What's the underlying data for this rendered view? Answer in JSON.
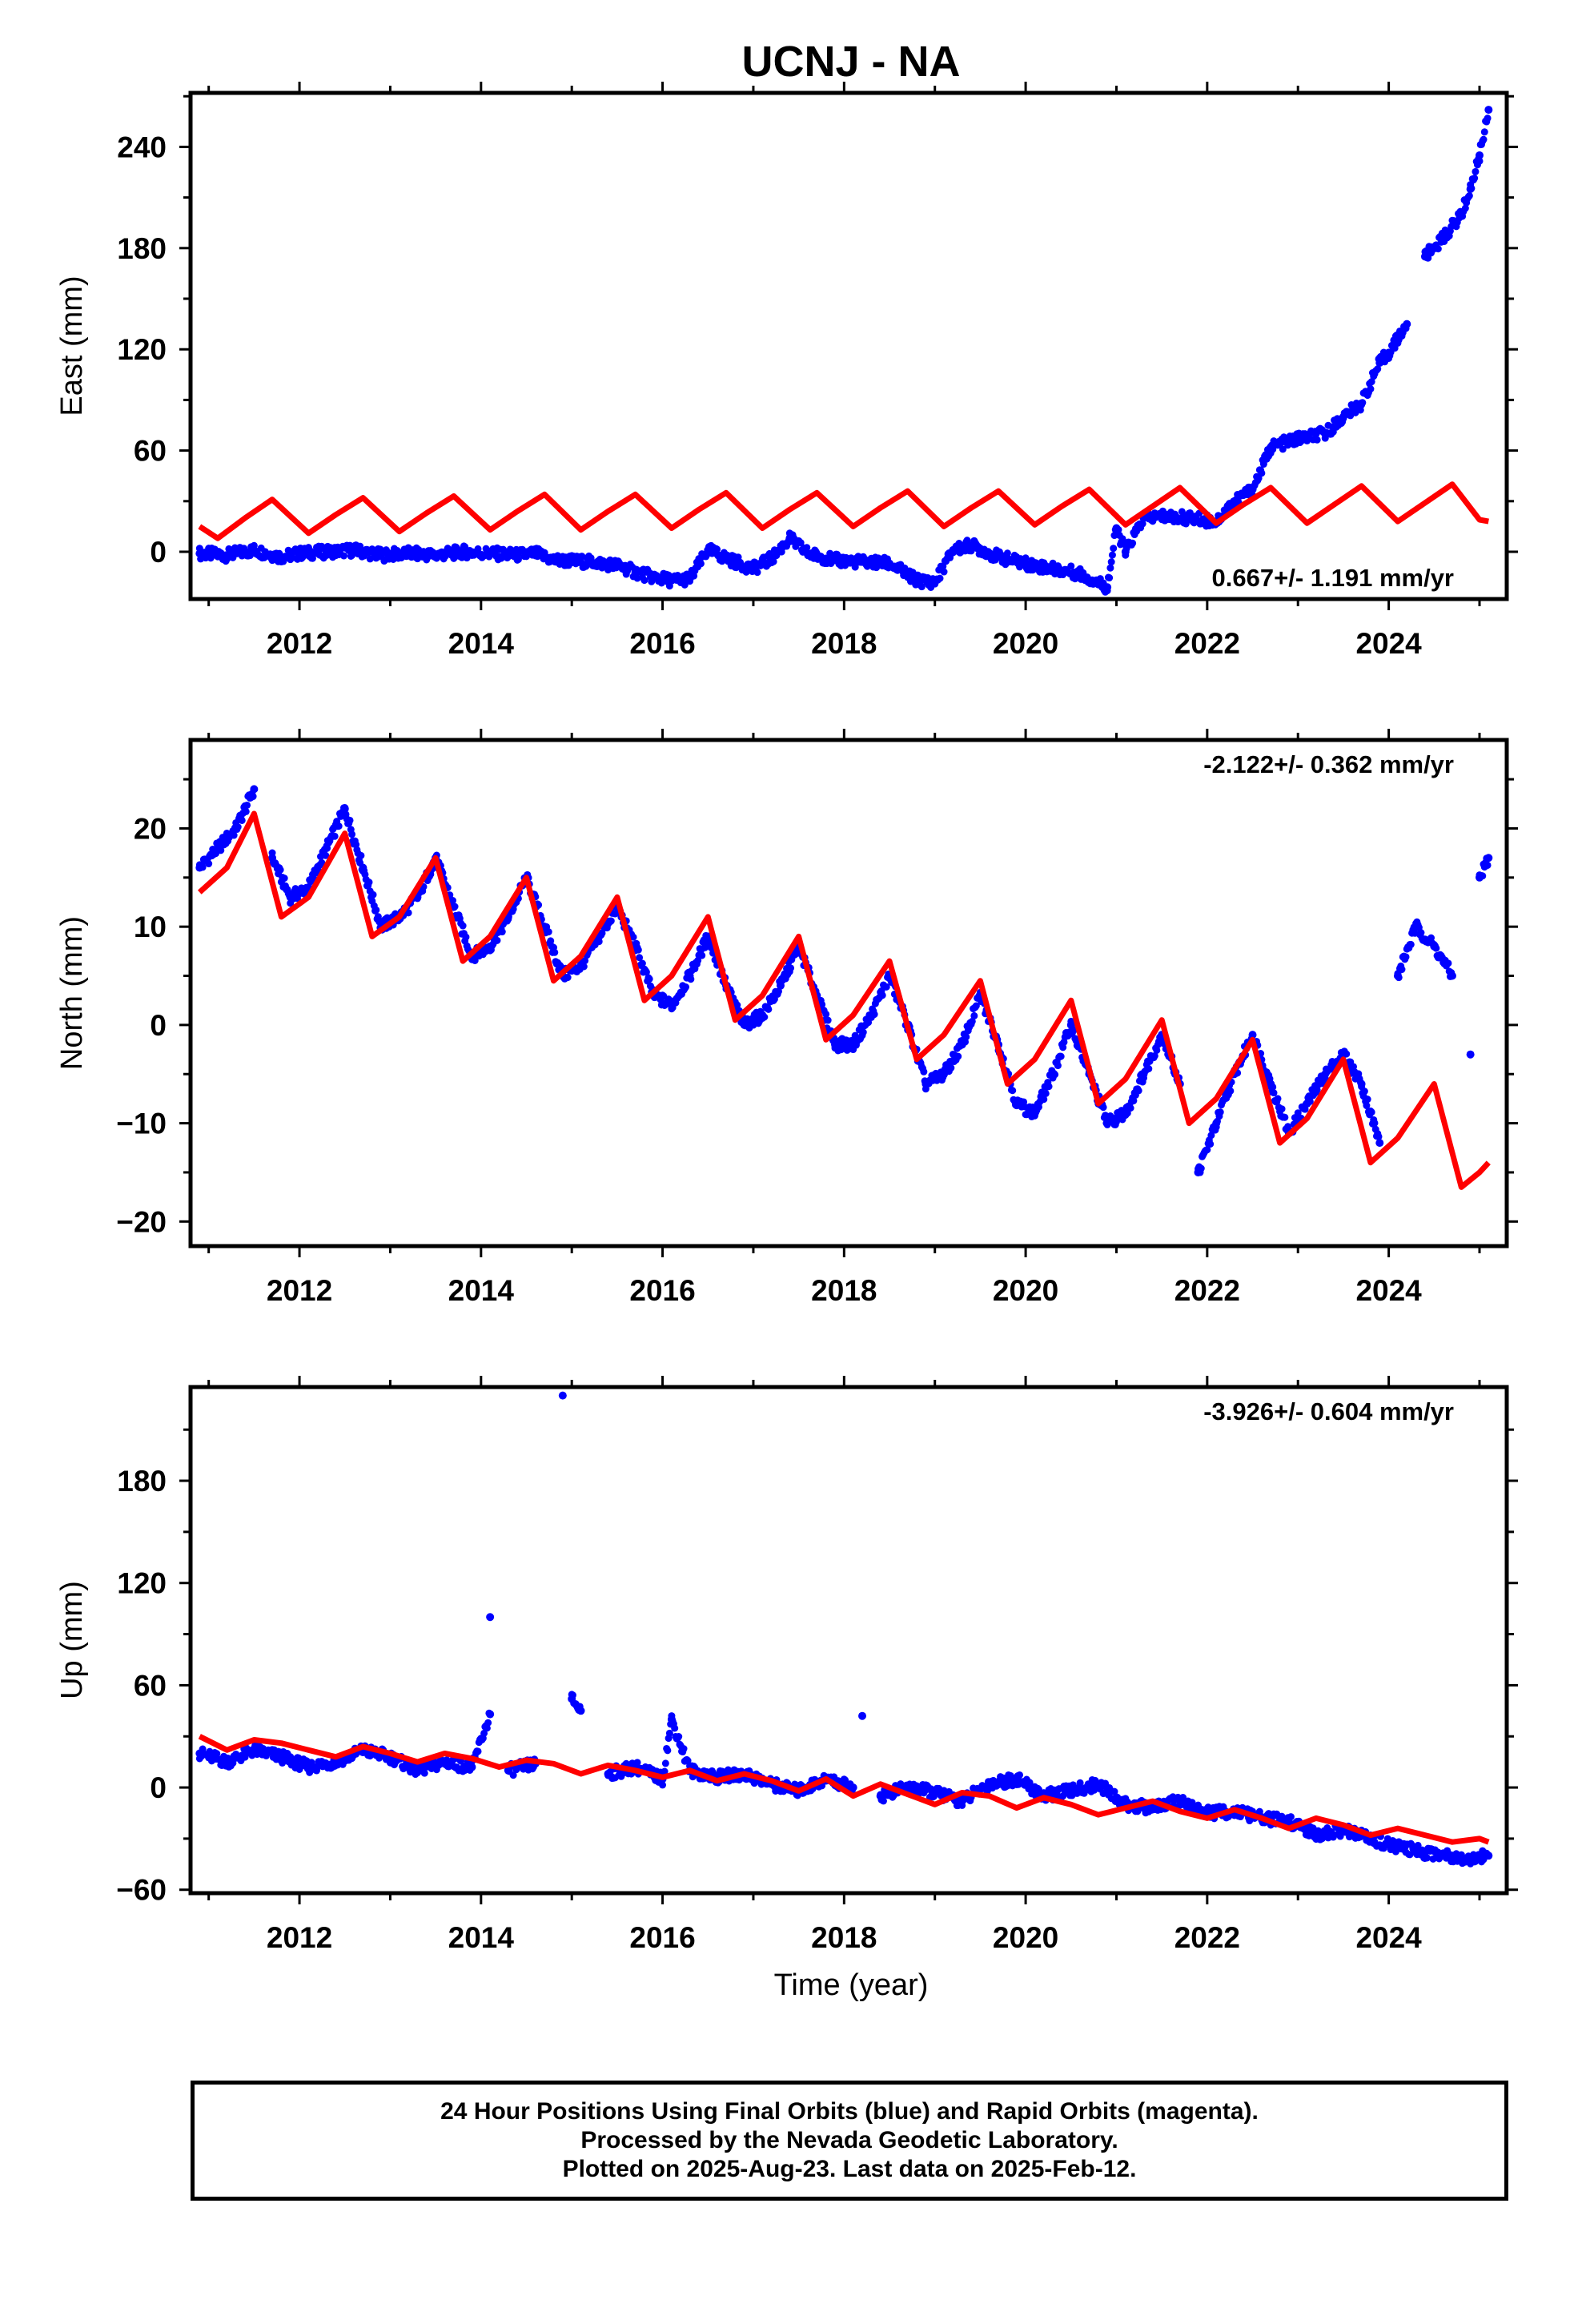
{
  "title": "UCNJ - NA",
  "xlabel": "Time (year)",
  "footer": {
    "line1": "24 Hour Positions Using Final Orbits (blue) and Rapid Orbits (magenta).",
    "line2": "Processed by the Nevada Geodetic Laboratory.",
    "line3": "Plotted on 2025-Aug-23. Last data on 2025-Feb-12."
  },
  "colors": {
    "data": "#0000ff",
    "model": "#ff0000",
    "axis": "#000000"
  },
  "chart_data": [
    {
      "type": "scatter",
      "ylabel": "East (mm)",
      "rate": "0.667+/- 1.191 mm/yr",
      "rate_position": "bottom-right",
      "xlim": [
        2010.8,
        2025.3
      ],
      "ylim": [
        -28,
        272
      ],
      "xticks": [
        2012,
        2014,
        2016,
        2018,
        2020,
        2022,
        2024
      ],
      "yticks": [
        0,
        60,
        120,
        180,
        240
      ],
      "grid": false,
      "series": [
        {
          "role": "observed",
          "x": [
            2010.9,
            2011.2,
            2011.5,
            2011.8,
            2012.0,
            2012.3,
            2012.6,
            2012.9,
            2013.2,
            2013.5,
            2013.8,
            2014.1,
            2014.4,
            2014.6,
            2014.8,
            2015.2,
            2015.5,
            2015.7,
            2015.9,
            2016.1,
            2016.3,
            2016.5,
            2016.8,
            2017.0,
            2017.2,
            2017.4,
            2017.6,
            2017.9,
            2018.2,
            2018.5,
            2018.8,
            2019.0,
            2019.2,
            2019.4,
            2019.7,
            2020.0,
            2020.3,
            2020.6,
            2020.9,
            2021.0,
            2021.1,
            2021.3,
            2021.5,
            2021.8,
            2022.1,
            2022.3,
            2022.5,
            2022.7,
            2023.0,
            2023.3,
            2023.5,
            2023.7,
            2023.9,
            2024.0,
            2024.2,
            2024.4,
            2024.6,
            2024.8,
            2024.9,
            2025.0,
            2025.1
          ],
          "y": [
            -1,
            -2,
            1,
            -3,
            -1,
            0,
            1,
            -2,
            -1,
            -2,
            0,
            -1,
            -2,
            -1,
            -5,
            -6,
            -8,
            -12,
            -15,
            -17,
            -16,
            1,
            -6,
            -10,
            -4,
            8,
            -1,
            -5,
            -6,
            -7,
            -17,
            -18,
            1,
            4,
            -3,
            -7,
            -10,
            -13,
            -21,
            14,
            0,
            20,
            21,
            20,
            18,
            30,
            37,
            62,
            67,
            70,
            80,
            88,
            112,
            118,
            135,
            175,
            186,
            200,
            215,
            235,
            262
          ]
        },
        {
          "role": "model",
          "x": [
            2010.9,
            2011.1,
            2011.4,
            2011.7,
            2012.1,
            2012.4,
            2012.7,
            2013.1,
            2013.4,
            2013.7,
            2014.1,
            2014.4,
            2014.7,
            2015.1,
            2015.4,
            2015.7,
            2016.1,
            2016.4,
            2016.7,
            2017.1,
            2017.4,
            2017.7,
            2018.1,
            2018.4,
            2018.7,
            2019.1,
            2019.4,
            2019.7,
            2020.1,
            2020.4,
            2020.7,
            2021.1,
            2021.4,
            2021.7,
            2022.1,
            2022.4,
            2022.7,
            2023.1,
            2023.4,
            2023.7,
            2024.1,
            2024.4,
            2024.7,
            2025.0,
            2025.1
          ],
          "y": [
            15,
            8,
            20,
            31,
            11,
            22,
            32,
            12,
            23,
            33,
            13,
            24,
            34,
            13,
            24,
            34,
            14,
            25,
            35,
            14,
            25,
            35,
            15,
            26,
            36,
            15,
            26,
            36,
            16,
            27,
            37,
            16,
            27,
            38,
            17,
            28,
            38,
            17,
            28,
            39,
            18,
            29,
            40,
            19,
            18
          ]
        }
      ]
    },
    {
      "type": "scatter",
      "ylabel": "North (mm)",
      "rate": "-2.122+/- 0.362 mm/yr",
      "rate_position": "top-right",
      "xlim": [
        2010.8,
        2025.3
      ],
      "ylim": [
        -22.5,
        29
      ],
      "xticks": [
        2012,
        2014,
        2016,
        2018,
        2020,
        2022,
        2024
      ],
      "yticks": [
        -20,
        -10,
        0,
        10,
        20
      ],
      "grid": false,
      "series": [
        {
          "role": "observed",
          "x": [
            2010.9,
            2011.1,
            2011.3,
            2011.5,
            2011.7,
            2011.9,
            2012.1,
            2012.3,
            2012.5,
            2012.7,
            2012.9,
            2013.1,
            2013.3,
            2013.5,
            2013.7,
            2013.9,
            2014.1,
            2014.3,
            2014.5,
            2014.7,
            2014.9,
            2015.1,
            2015.3,
            2015.5,
            2015.7,
            2015.9,
            2016.1,
            2016.3,
            2016.5,
            2016.7,
            2016.9,
            2017.1,
            2017.3,
            2017.5,
            2017.7,
            2017.9,
            2018.1,
            2018.3,
            2018.5,
            2018.7,
            2018.9,
            2019.1,
            2019.3,
            2019.5,
            2019.7,
            2019.9,
            2020.1,
            2020.3,
            2020.5,
            2020.7,
            2020.9,
            2021.1,
            2021.3,
            2021.5,
            2021.7,
            2021.9,
            2022.1,
            2022.3,
            2022.5,
            2022.7,
            2022.9,
            2023.1,
            2023.3,
            2023.5,
            2023.7,
            2023.9,
            2024.1,
            2024.3,
            2024.5,
            2024.7,
            2024.9,
            2025.0,
            2025.1
          ],
          "y": [
            16,
            18,
            20,
            24,
            17,
            13,
            14,
            18,
            22,
            16,
            10,
            11,
            13,
            17,
            12,
            7,
            8,
            11,
            15,
            10,
            5,
            6,
            9,
            12,
            8,
            3,
            2,
            5,
            9,
            4,
            0,
            1,
            4,
            8,
            3,
            -2,
            -2,
            1,
            5,
            0,
            -6,
            -5,
            -2,
            3,
            -2,
            -8,
            -9,
            -5,
            0,
            -5,
            -10,
            -9,
            -5,
            -1,
            -6,
            -15,
            -10,
            -5,
            -1,
            -6,
            -11,
            -8,
            -5,
            -3,
            -6,
            -12,
            5,
            10,
            8,
            5,
            -3,
            15,
            17
          ]
        },
        {
          "role": "model",
          "x": [
            2010.9,
            2011.2,
            2011.5,
            2011.8,
            2012.1,
            2012.5,
            2012.8,
            2013.1,
            2013.5,
            2013.8,
            2014.1,
            2014.5,
            2014.8,
            2015.1,
            2015.5,
            2015.8,
            2016.1,
            2016.5,
            2016.8,
            2017.1,
            2017.5,
            2017.8,
            2018.1,
            2018.5,
            2018.8,
            2019.1,
            2019.5,
            2019.8,
            2020.1,
            2020.5,
            2020.8,
            2021.1,
            2021.5,
            2021.8,
            2022.1,
            2022.5,
            2022.8,
            2023.1,
            2023.5,
            2023.8,
            2024.1,
            2024.5,
            2024.8,
            2025.0,
            2025.1
          ],
          "y": [
            13.5,
            16,
            21.5,
            11,
            13,
            19.5,
            9,
            11,
            17,
            6.5,
            9,
            15,
            4.5,
            7,
            13,
            2.5,
            5,
            11,
            0.5,
            3,
            9,
            -1.5,
            1,
            6.5,
            -3.5,
            -1,
            4.5,
            -6,
            -3.5,
            2.5,
            -8,
            -5.5,
            0.5,
            -10,
            -7.5,
            -1.5,
            -12,
            -9.5,
            -3.5,
            -14,
            -11.5,
            -6,
            -16.5,
            -15,
            -14
          ]
        }
      ]
    },
    {
      "type": "scatter",
      "ylabel": "Up (mm)",
      "rate": "-3.926+/- 0.604 mm/yr",
      "rate_position": "top-right",
      "xlim": [
        2010.8,
        2025.3
      ],
      "ylim": [
        -62,
        235
      ],
      "xticks": [
        2012,
        2014,
        2016,
        2018,
        2020,
        2022,
        2024
      ],
      "yticks": [
        -60,
        0,
        60,
        120,
        180
      ],
      "grid": false,
      "series": [
        {
          "role": "observed",
          "x": [
            2010.9,
            2011.2,
            2011.5,
            2011.8,
            2012.1,
            2012.4,
            2012.7,
            2013.0,
            2013.3,
            2013.6,
            2013.9,
            2014.1,
            2014.1,
            2014.3,
            2014.6,
            2014.9,
            2015.0,
            2015.1,
            2015.4,
            2015.7,
            2016.0,
            2016.1,
            2016.3,
            2016.6,
            2016.9,
            2017.2,
            2017.5,
            2017.8,
            2018.1,
            2018.2,
            2018.4,
            2018.7,
            2019.0,
            2019.3,
            2019.6,
            2019.9,
            2020.2,
            2020.5,
            2020.8,
            2021.1,
            2021.4,
            2021.7,
            2022.0,
            2022.3,
            2022.6,
            2022.9,
            2023.2,
            2023.5,
            2023.8,
            2024.1,
            2024.4,
            2024.7,
            2024.9,
            2025.1
          ],
          "y": [
            20,
            15,
            22,
            18,
            12,
            15,
            22,
            18,
            10,
            15,
            12,
            43,
            100,
            10,
            14,
            230,
            52,
            45,
            8,
            12,
            5,
            40,
            10,
            6,
            8,
            2,
            -2,
            5,
            0,
            42,
            -5,
            0,
            -3,
            -8,
            2,
            5,
            -5,
            -2,
            2,
            -10,
            -12,
            -8,
            -15,
            -14,
            -18,
            -20,
            -28,
            -25,
            -30,
            -35,
            -38,
            -40,
            -42,
            -40
          ]
        },
        {
          "role": "model",
          "x": [
            2010.9,
            2011.2,
            2011.5,
            2011.8,
            2012.1,
            2012.4,
            2012.7,
            2013.0,
            2013.3,
            2013.6,
            2013.9,
            2014.2,
            2014.5,
            2014.8,
            2015.1,
            2015.4,
            2015.7,
            2016.0,
            2016.3,
            2016.6,
            2016.9,
            2017.2,
            2017.5,
            2017.8,
            2018.1,
            2018.4,
            2018.7,
            2019.0,
            2019.3,
            2019.6,
            2019.9,
            2020.2,
            2020.5,
            2020.8,
            2021.1,
            2021.4,
            2021.7,
            2022.0,
            2022.3,
            2022.6,
            2022.9,
            2023.2,
            2023.5,
            2023.8,
            2024.1,
            2024.4,
            2024.7,
            2025.0,
            2025.1
          ],
          "y": [
            30,
            22,
            28,
            26,
            22,
            18,
            24,
            20,
            15,
            20,
            17,
            12,
            16,
            14,
            8,
            13,
            10,
            6,
            10,
            4,
            8,
            4,
            -2,
            5,
            -5,
            2,
            -4,
            -10,
            -3,
            -5,
            -12,
            -6,
            -10,
            -16,
            -12,
            -8,
            -14,
            -18,
            -13,
            -18,
            -24,
            -18,
            -22,
            -28,
            -24,
            -28,
            -32,
            -30,
            -32
          ]
        }
      ]
    }
  ]
}
